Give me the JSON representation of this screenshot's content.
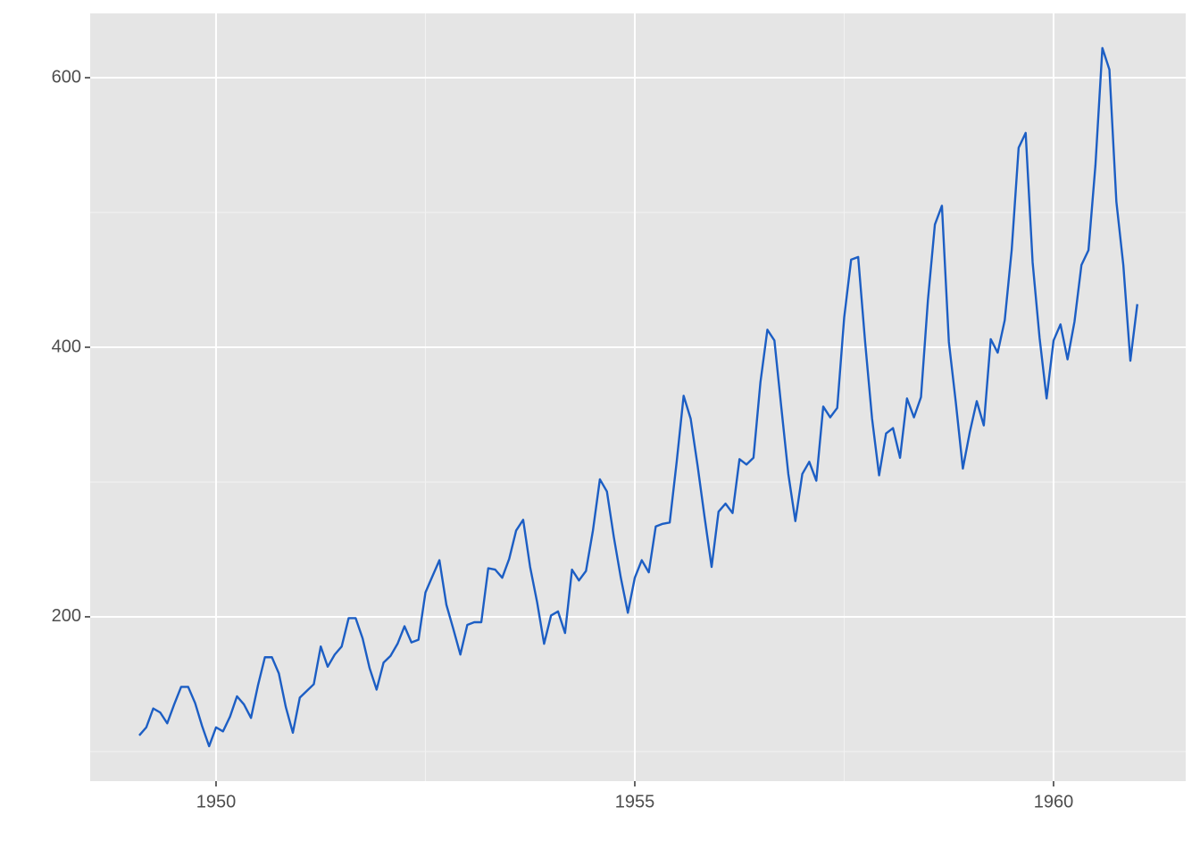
{
  "chart_data": {
    "type": "line",
    "x": [
      1949.083,
      1949.167,
      1949.25,
      1949.333,
      1949.417,
      1949.5,
      1949.583,
      1949.667,
      1949.75,
      1949.833,
      1949.917,
      1950,
      1950.083,
      1950.167,
      1950.25,
      1950.333,
      1950.417,
      1950.5,
      1950.583,
      1950.667,
      1950.75,
      1950.833,
      1950.917,
      1951,
      1951.083,
      1951.167,
      1951.25,
      1951.333,
      1951.417,
      1951.5,
      1951.583,
      1951.667,
      1951.75,
      1951.833,
      1951.917,
      1952,
      1952.083,
      1952.167,
      1952.25,
      1952.333,
      1952.417,
      1952.5,
      1952.583,
      1952.667,
      1952.75,
      1952.833,
      1952.917,
      1953,
      1953.083,
      1953.167,
      1953.25,
      1953.333,
      1953.417,
      1953.5,
      1953.583,
      1953.667,
      1953.75,
      1953.833,
      1953.917,
      1954,
      1954.083,
      1954.167,
      1954.25,
      1954.333,
      1954.417,
      1954.5,
      1954.583,
      1954.667,
      1954.75,
      1954.833,
      1954.917,
      1955,
      1955.083,
      1955.167,
      1955.25,
      1955.333,
      1955.417,
      1955.5,
      1955.583,
      1955.667,
      1955.75,
      1955.833,
      1955.917,
      1956,
      1956.083,
      1956.167,
      1956.25,
      1956.333,
      1956.417,
      1956.5,
      1956.583,
      1956.667,
      1956.75,
      1956.833,
      1956.917,
      1957,
      1957.083,
      1957.167,
      1957.25,
      1957.333,
      1957.417,
      1957.5,
      1957.583,
      1957.667,
      1957.75,
      1957.833,
      1957.917,
      1958,
      1958.083,
      1958.167,
      1958.25,
      1958.333,
      1958.417,
      1958.5,
      1958.583,
      1958.667,
      1958.75,
      1958.833,
      1958.917,
      1959,
      1959.083,
      1959.167,
      1959.25,
      1959.333,
      1959.417,
      1959.5,
      1959.583,
      1959.667,
      1959.75,
      1959.833,
      1959.917,
      1960,
      1960.083,
      1960.167,
      1960.25,
      1960.333,
      1960.417,
      1960.5,
      1960.583,
      1960.667,
      1960.75,
      1960.833,
      1960.917,
      1961
    ],
    "series": [
      {
        "color": "#1c5ec4",
        "values": [
          112,
          118,
          132,
          129,
          121,
          135,
          148,
          148,
          136,
          119,
          104,
          118,
          115,
          126,
          141,
          135,
          125,
          149,
          170,
          170,
          158,
          133,
          114,
          140,
          145,
          150,
          178,
          163,
          172,
          178,
          199,
          199,
          184,
          162,
          146,
          166,
          171,
          180,
          193,
          181,
          183,
          218,
          230,
          242,
          209,
          191,
          172,
          194,
          196,
          196,
          236,
          235,
          229,
          243,
          264,
          272,
          237,
          211,
          180,
          201,
          204,
          188,
          235,
          227,
          234,
          264,
          302,
          293,
          259,
          229,
          203,
          229,
          242,
          233,
          267,
          269,
          270,
          315,
          364,
          347,
          312,
          274,
          237,
          278,
          284,
          277,
          317,
          313,
          318,
          374,
          413,
          405,
          355,
          306,
          271,
          306,
          315,
          301,
          356,
          348,
          355,
          422,
          465,
          467,
          404,
          347,
          305,
          336,
          340,
          318,
          362,
          348,
          363,
          435,
          491,
          505,
          404,
          359,
          310,
          337,
          360,
          342,
          406,
          396,
          420,
          472,
          548,
          559,
          463,
          407,
          362,
          405,
          417,
          391,
          419,
          461,
          472,
          535,
          622,
          606,
          508,
          461,
          390,
          432
        ]
      }
    ],
    "xlim": [
      1948.497,
      1961.578
    ],
    "ylim": [
      78.1,
      647.7
    ],
    "xticks": [
      1950,
      1955,
      1960
    ],
    "yticks": [
      200,
      400,
      600
    ],
    "xminor": [
      1952.5,
      1957.5
    ],
    "yminor": [
      100,
      300,
      500
    ],
    "grid": true
  }
}
